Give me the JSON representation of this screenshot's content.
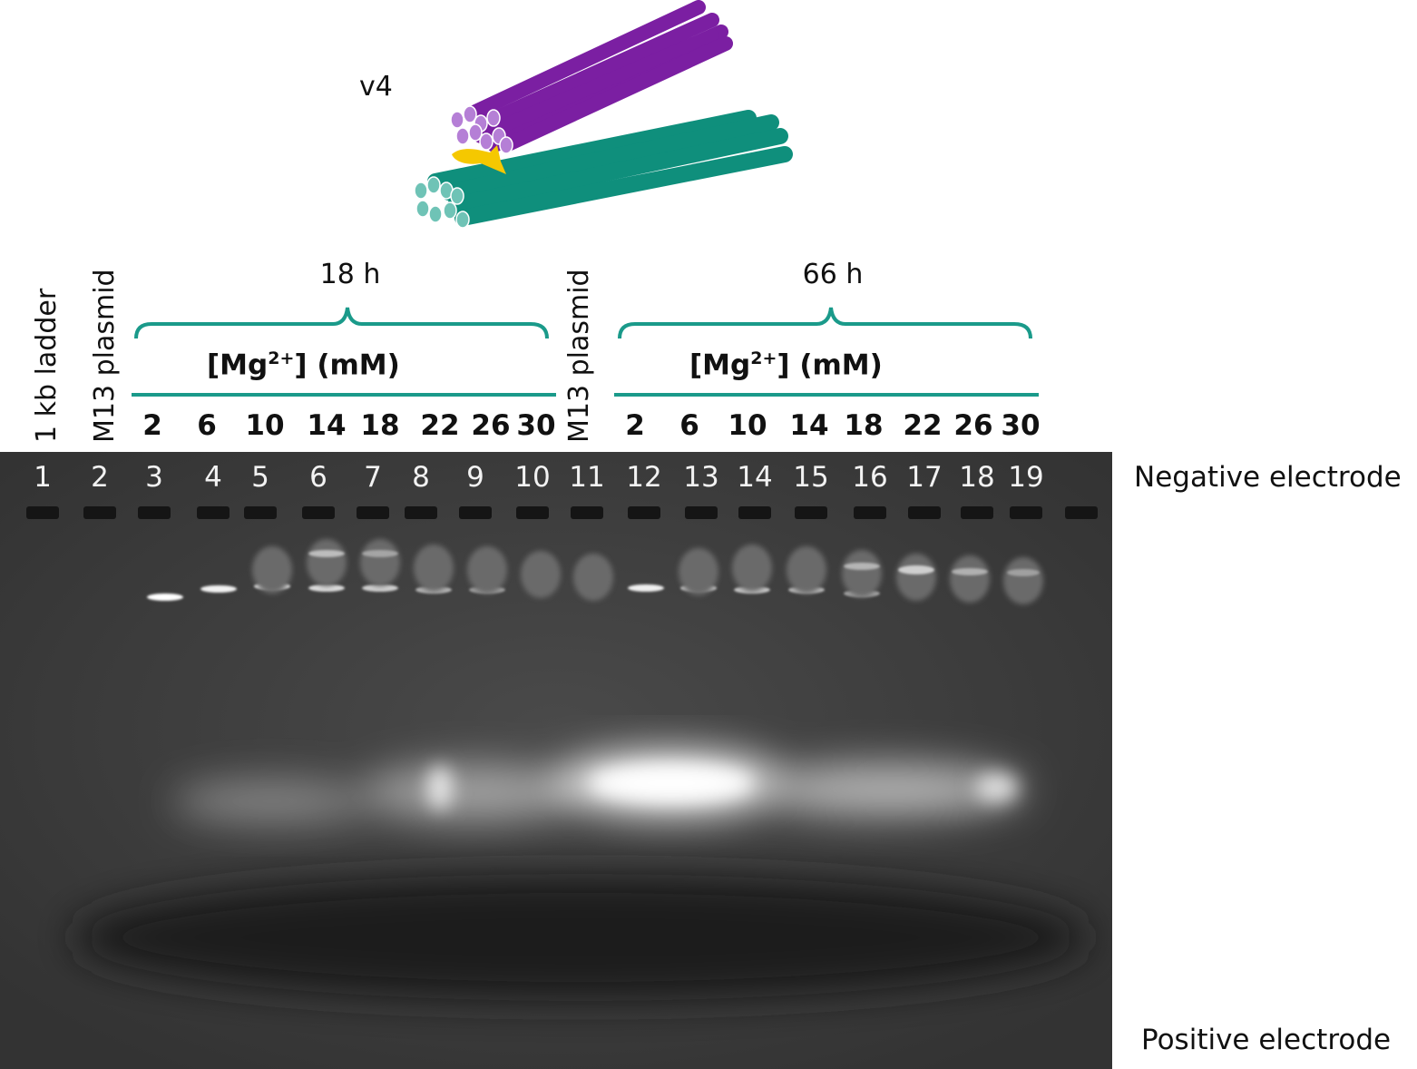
{
  "construct_label": "v4",
  "rotated_labels": {
    "ladder": "1 kb ladder",
    "plasmid_a": "M13 plasmid",
    "plasmid_b": "M13 plasmid"
  },
  "groups": [
    {
      "time": "18 h",
      "mg_label": "[Mg",
      "mg_sup": "2+",
      "mg_unit": "] (mM)",
      "concentrations": [
        "2",
        "6",
        "10",
        "14",
        "18",
        "22",
        "26",
        "30"
      ]
    },
    {
      "time": "66 h",
      "mg_label": "[Mg",
      "mg_sup": "2+",
      "mg_unit": "] (mM)",
      "concentrations": [
        "2",
        "6",
        "10",
        "14",
        "18",
        "22",
        "26",
        "30"
      ]
    }
  ],
  "lane_numbers": [
    "1",
    "2",
    "3",
    "4",
    "5",
    "6",
    "7",
    "8",
    "9",
    "10",
    "11",
    "12",
    "13",
    "14",
    "15",
    "16",
    "17",
    "18",
    "19"
  ],
  "electrodes": {
    "negative": "Negative electrode",
    "positive": "Positive electrode"
  },
  "colors": {
    "bracket": "#1a9a8a",
    "purple_bundle": "#7b1fa2",
    "purple_end": "#b57fd6",
    "teal_bundle": "#0f8f7c",
    "teal_end": "#6fc3b6",
    "yellow_joint": "#f5c800",
    "gel_background": "#3b3b3b"
  },
  "icons": {
    "origami": "dna-origami-bundle-illustration"
  }
}
